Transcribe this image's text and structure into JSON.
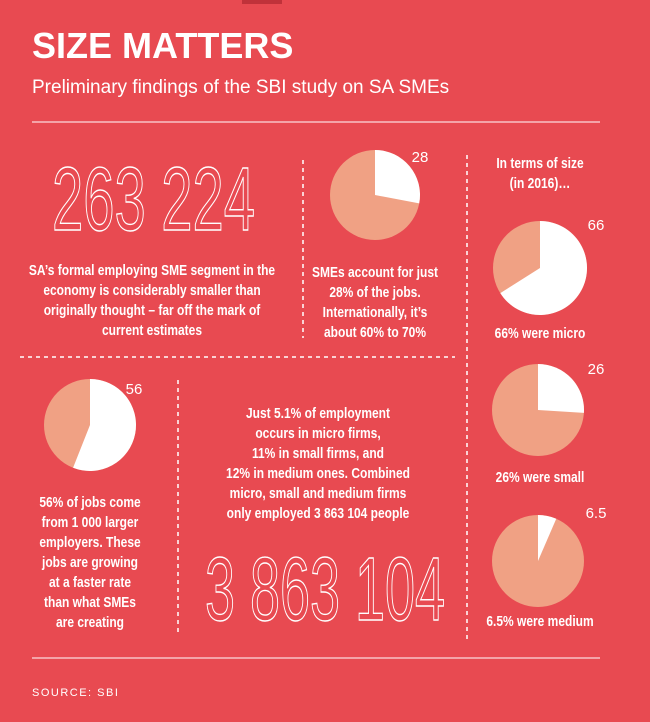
{
  "header": {
    "title": "SIZE MATTERS",
    "subtitle": "Preliminary findings of the SBI study on SA SMEs"
  },
  "stats": [
    {
      "number": "263 224",
      "lines": [
        "SA’s formal employing SME segment in the",
        "economy is considerably smaller than",
        "originally thought – far off the mark of",
        "current estimates"
      ]
    },
    {
      "number": "3 863 104",
      "lines": [
        "Just 5.1% of employment",
        "occurs in micro firms,",
        "11% in small firms, and",
        "12% in medium ones. Combined",
        "micro, small and medium firms",
        "only employed 3 863 104 people"
      ]
    }
  ],
  "size_heading": [
    "In terms of size",
    "(in 2016)…"
  ],
  "chart_data": [
    {
      "type": "pie",
      "values": [
        28
      ],
      "color": "#ffffff",
      "annotation": [
        "SMEs account for just",
        "28% of the jobs.",
        "Internationally, it’s",
        "about 60% to 70%"
      ]
    },
    {
      "type": "pie",
      "values": [
        66
      ],
      "color": "#ffffff",
      "annotation": [
        "66% were micro"
      ]
    },
    {
      "type": "pie",
      "values": [
        56
      ],
      "color": "#ffffff",
      "annotation": [
        "56% of jobs come",
        "from 1 000 larger",
        "employers. These",
        "jobs are growing",
        "at a faster rate",
        "than what SMEs",
        "are creating"
      ]
    },
    {
      "type": "pie",
      "values": [
        26
      ],
      "color": "#ffffff",
      "annotation": [
        "26% were small"
      ]
    },
    {
      "type": "pie",
      "values": [
        6.5
      ],
      "color": "#ffffff",
      "annotation": [
        "6.5% were medium"
      ]
    }
  ],
  "source": "SOURCE: SBI"
}
